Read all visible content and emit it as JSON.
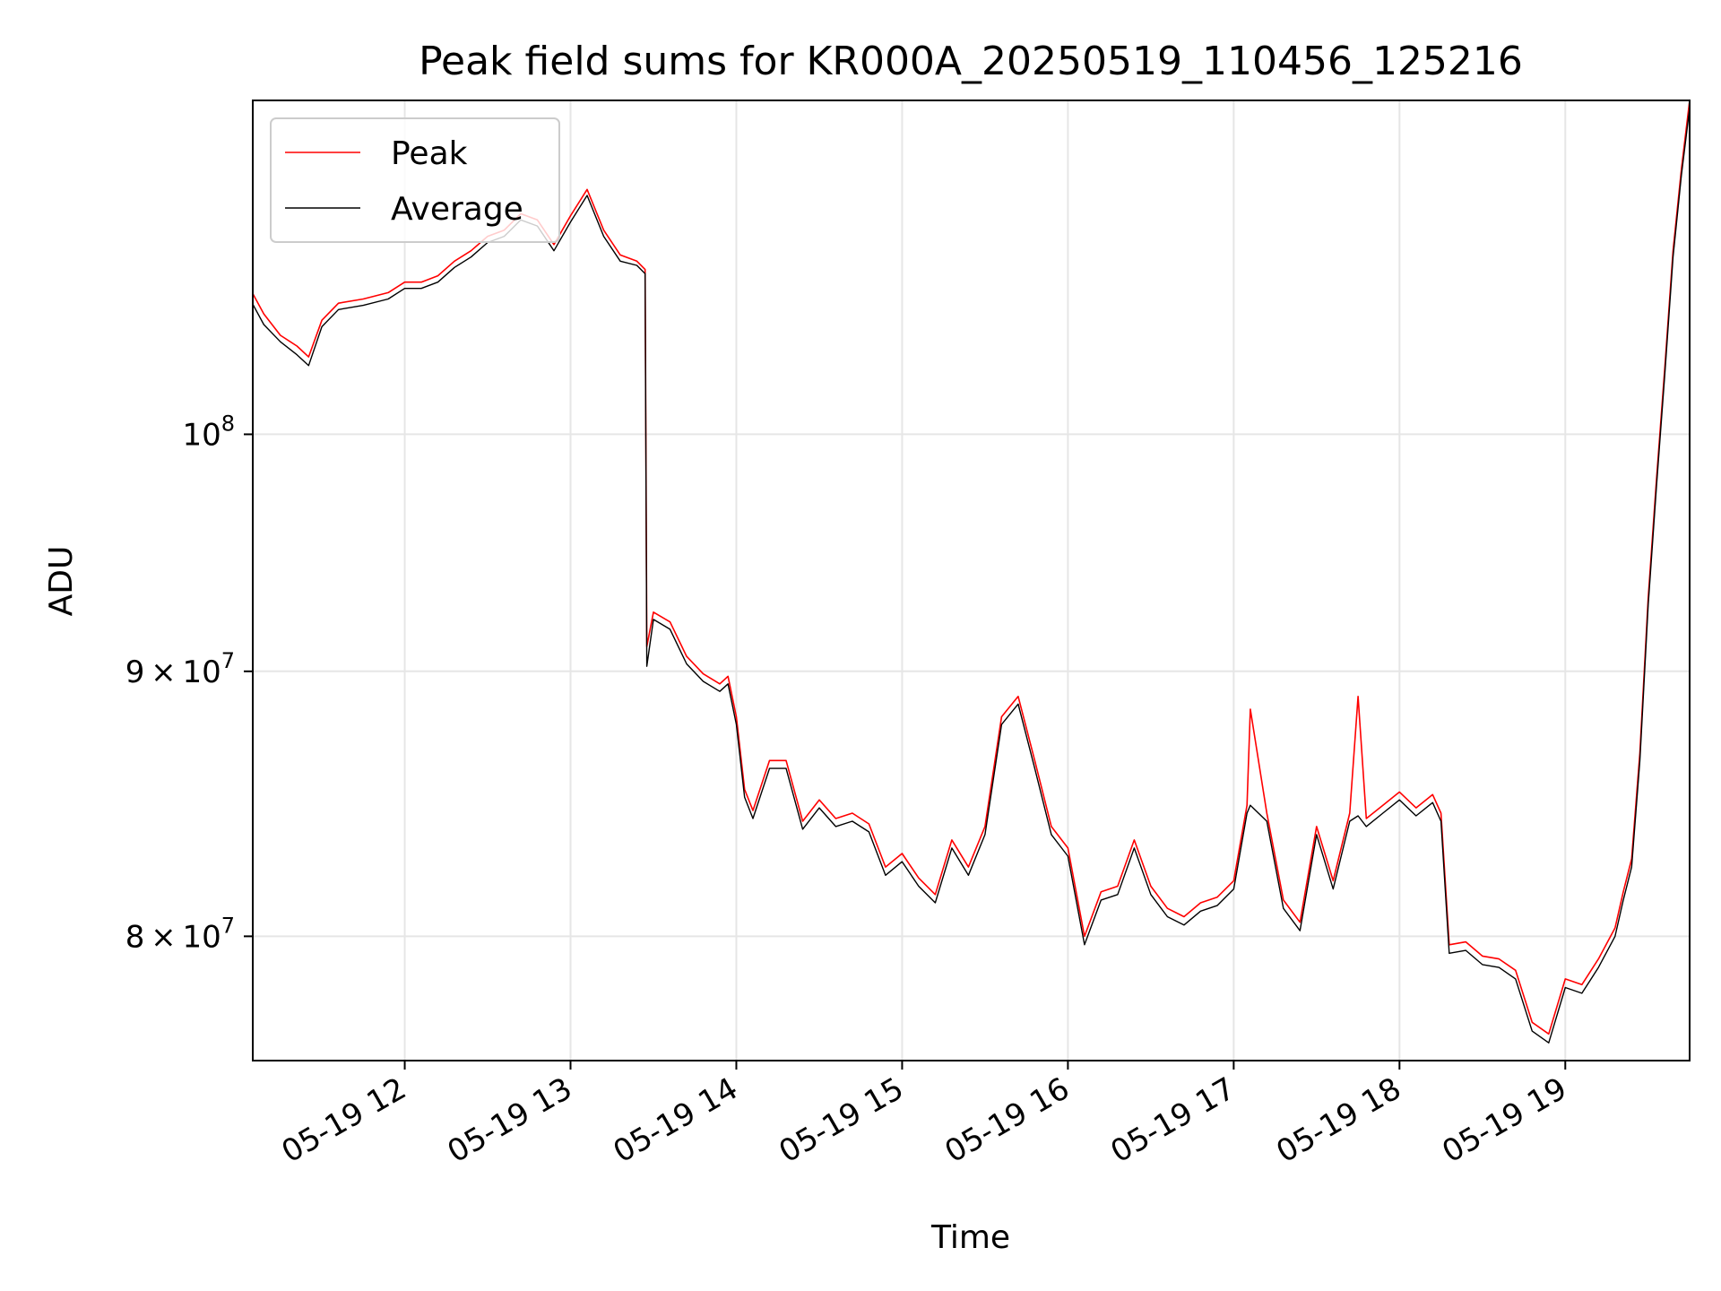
{
  "chart_data": {
    "type": "line",
    "title": "Peak field sums for KR000A_20250519_110456_125216",
    "xlabel": "Time",
    "ylabel": "ADU",
    "y_scale": "log",
    "ylim": [
      75700000,
      116000000
    ],
    "xlim": [
      "05-19 11:05",
      "05-19 19:45"
    ],
    "x_tick_labels": [
      "05-19 12",
      "05-19 13",
      "05-19 14",
      "05-19 15",
      "05-19 16",
      "05-19 17",
      "05-19 18",
      "05-19 19"
    ],
    "x_tick_hours": [
      12,
      13,
      14,
      15,
      16,
      17,
      18,
      19
    ],
    "y_ticks": [
      {
        "value": 80000000,
        "mantissa": "8",
        "exp": "7"
      },
      {
        "value": 90000000,
        "mantissa": "9",
        "exp": "7"
      },
      {
        "value": 100000000,
        "mantissa": "",
        "exp": "8"
      }
    ],
    "grid": true,
    "legend_position": "upper-left",
    "x_unit": "hour of day (05-19)",
    "series": [
      {
        "name": "Peak",
        "color": "#ff0000",
        "x": [
          11.08,
          11.15,
          11.25,
          11.35,
          11.42,
          11.5,
          11.6,
          11.75,
          11.9,
          12.0,
          12.1,
          12.2,
          12.3,
          12.4,
          12.5,
          12.6,
          12.7,
          12.8,
          12.9,
          13.0,
          13.1,
          13.2,
          13.3,
          13.4,
          13.45,
          13.46,
          13.5,
          13.6,
          13.7,
          13.8,
          13.9,
          13.95,
          14.0,
          14.05,
          14.1,
          14.2,
          14.3,
          14.4,
          14.5,
          14.6,
          14.7,
          14.8,
          14.9,
          15.0,
          15.1,
          15.2,
          15.3,
          15.4,
          15.5,
          15.6,
          15.7,
          15.8,
          15.9,
          16.0,
          16.1,
          16.2,
          16.3,
          16.4,
          16.5,
          16.6,
          16.7,
          16.8,
          16.9,
          17.0,
          17.08,
          17.1,
          17.2,
          17.3,
          17.4,
          17.5,
          17.6,
          17.7,
          17.75,
          17.8,
          17.9,
          18.0,
          18.1,
          18.2,
          18.25,
          18.3,
          18.4,
          18.5,
          18.6,
          18.7,
          18.8,
          18.9,
          19.0,
          19.1,
          19.2,
          19.3,
          19.35,
          19.4,
          19.45,
          19.5,
          19.55,
          19.6,
          19.65,
          19.7,
          19.75
        ],
        "y": [
          106500000,
          105500000,
          104500000,
          104000000,
          103500000,
          105200000,
          106000000,
          106200000,
          106500000,
          107000000,
          107000000,
          107300000,
          108000000,
          108500000,
          109200000,
          109500000,
          110300000,
          110000000,
          108800000,
          110200000,
          111500000,
          109500000,
          108300000,
          108000000,
          107600000,
          91000000,
          92400000,
          92000000,
          90600000,
          89900000,
          89500000,
          89800000,
          88200000,
          85400000,
          84600000,
          86500000,
          86500000,
          84200000,
          85000000,
          84300000,
          84500000,
          84100000,
          82500000,
          83000000,
          82100000,
          81500000,
          83500000,
          82500000,
          84000000,
          88200000,
          89000000,
          86500000,
          84000000,
          83200000,
          80000000,
          81600000,
          81800000,
          83500000,
          81800000,
          81000000,
          80700000,
          81200000,
          81400000,
          82000000,
          84800000,
          88500000,
          84500000,
          81300000,
          80500000,
          84000000,
          82000000,
          84500000,
          89000000,
          84300000,
          84800000,
          85300000,
          84700000,
          85200000,
          84500000,
          79700000,
          79800000,
          79300000,
          79200000,
          78800000,
          77000000,
          76600000,
          78500000,
          78300000,
          79200000,
          80300000,
          81600000,
          82800000,
          86800000,
          93000000,
          98000000,
          103000000,
          108500000,
          112500000,
          116000000
        ]
      },
      {
        "name": "Average",
        "color": "#000000",
        "x": [
          11.08,
          11.15,
          11.25,
          11.35,
          11.42,
          11.5,
          11.6,
          11.75,
          11.9,
          12.0,
          12.1,
          12.2,
          12.3,
          12.4,
          12.5,
          12.6,
          12.7,
          12.8,
          12.9,
          13.0,
          13.1,
          13.2,
          13.3,
          13.4,
          13.45,
          13.46,
          13.5,
          13.6,
          13.7,
          13.8,
          13.9,
          13.95,
          14.0,
          14.05,
          14.1,
          14.2,
          14.3,
          14.4,
          14.5,
          14.6,
          14.7,
          14.8,
          14.9,
          15.0,
          15.1,
          15.2,
          15.3,
          15.4,
          15.5,
          15.6,
          15.7,
          15.8,
          15.9,
          16.0,
          16.1,
          16.2,
          16.3,
          16.4,
          16.5,
          16.6,
          16.7,
          16.8,
          16.9,
          17.0,
          17.08,
          17.1,
          17.2,
          17.3,
          17.4,
          17.5,
          17.6,
          17.7,
          17.75,
          17.8,
          17.9,
          18.0,
          18.1,
          18.2,
          18.25,
          18.3,
          18.4,
          18.5,
          18.6,
          18.7,
          18.8,
          18.9,
          19.0,
          19.1,
          19.2,
          19.3,
          19.35,
          19.4,
          19.45,
          19.5,
          19.55,
          19.6,
          19.65,
          19.7,
          19.75
        ],
        "y": [
          106000000,
          105000000,
          104200000,
          103600000,
          103100000,
          104900000,
          105700000,
          105900000,
          106200000,
          106700000,
          106700000,
          107000000,
          107700000,
          108200000,
          108900000,
          109200000,
          110000000,
          109700000,
          108500000,
          109900000,
          111200000,
          109200000,
          108000000,
          107800000,
          107400000,
          90200000,
          92100000,
          91700000,
          90300000,
          89600000,
          89200000,
          89500000,
          87900000,
          85100000,
          84300000,
          86200000,
          86200000,
          83900000,
          84700000,
          84000000,
          84200000,
          83800000,
          82200000,
          82700000,
          81800000,
          81200000,
          83200000,
          82200000,
          83700000,
          87900000,
          88700000,
          86200000,
          83700000,
          82900000,
          79700000,
          81300000,
          81500000,
          83200000,
          81500000,
          80700000,
          80400000,
          80900000,
          81100000,
          81700000,
          84500000,
          84800000,
          84200000,
          81000000,
          80200000,
          83700000,
          81700000,
          84200000,
          84400000,
          84000000,
          84500000,
          85000000,
          84400000,
          84900000,
          84200000,
          79400000,
          79500000,
          79000000,
          78900000,
          78500000,
          76700000,
          76300000,
          78200000,
          78000000,
          78900000,
          80000000,
          81300000,
          82500000,
          86500000,
          92700000,
          97700000,
          102700000,
          108200000,
          112200000,
          115600000
        ]
      }
    ]
  }
}
